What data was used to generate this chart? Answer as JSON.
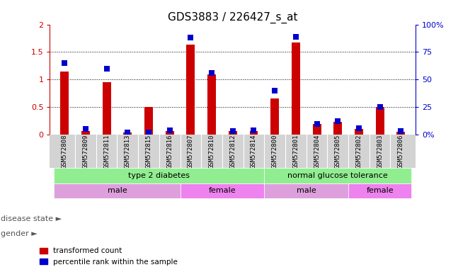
{
  "title": "GDS3883 / 226427_s_at",
  "samples": [
    "GSM572808",
    "GSM572809",
    "GSM572811",
    "GSM572813",
    "GSM572815",
    "GSM572816",
    "GSM572807",
    "GSM572810",
    "GSM572812",
    "GSM572814",
    "GSM572800",
    "GSM572801",
    "GSM572804",
    "GSM572805",
    "GSM572802",
    "GSM572803",
    "GSM572806"
  ],
  "red_values": [
    1.14,
    0.07,
    0.95,
    0.04,
    0.5,
    0.07,
    1.63,
    1.09,
    0.06,
    0.07,
    0.66,
    1.67,
    0.19,
    0.23,
    0.1,
    0.5,
    0.05
  ],
  "blue_values_pct": [
    65,
    5,
    60,
    2,
    2,
    4,
    88,
    56,
    3,
    4,
    40,
    89,
    10,
    12,
    6,
    25,
    3
  ],
  "red_color": "#cc0000",
  "blue_color": "#0000cc",
  "ylim_left": [
    0,
    2
  ],
  "ylim_right": [
    0,
    100
  ],
  "yticks_left": [
    0,
    0.5,
    1.0,
    1.5,
    2.0
  ],
  "ytick_labels_left": [
    "0",
    "0.5",
    "1",
    "1.5",
    "2"
  ],
  "yticks_right": [
    0,
    25,
    50,
    75,
    100
  ],
  "ytick_labels_right": [
    "0%",
    "25",
    "50",
    "75",
    "100%"
  ],
  "bg_color": "#ffffff",
  "sample_row_color": "#d3d3d3",
  "disease_color": "#90EE90",
  "gender_male_color": "#DDA0DD",
  "gender_female_color": "#EE82EE",
  "legend_red": "transformed count",
  "legend_blue": "percentile rank within the sample",
  "disease_state_label": "disease state",
  "gender_label": "gender",
  "bar_width": 0.4,
  "blue_marker_size": 40
}
